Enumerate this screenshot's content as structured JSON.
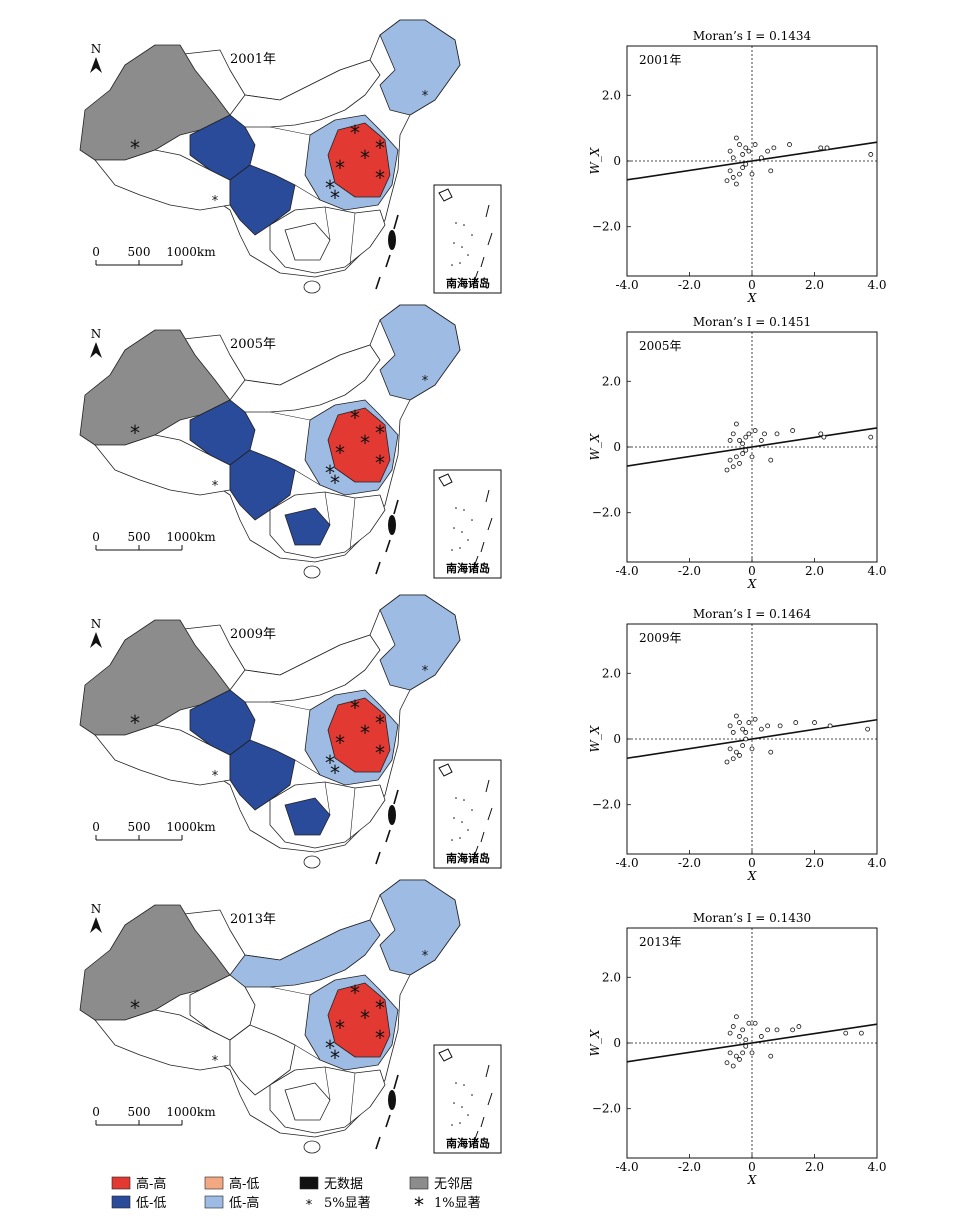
{
  "colors": {
    "high_high": "#e23a33",
    "high_low": "#f4a882",
    "no_data": "#111111",
    "no_neighbor": "#8c8c8c",
    "low_low": "#2a4a9a",
    "low_high": "#9dbbe3",
    "base": "#ffffff"
  },
  "map": {
    "north_label": "N",
    "scale_labels": [
      "0",
      "500",
      "1000km"
    ],
    "inset_label": "南海诸岛"
  },
  "legend": {
    "items": [
      {
        "key": "high_high",
        "label": "高-高"
      },
      {
        "key": "high_low",
        "label": "高-低"
      },
      {
        "key": "no_data",
        "label": "无数据"
      },
      {
        "key": "no_neighbor",
        "label": "无邻居"
      },
      {
        "key": "low_low",
        "label": "低-低"
      },
      {
        "key": "low_high",
        "label": "低-高"
      },
      {
        "key": "sig5",
        "label": "5%显著"
      },
      {
        "key": "sig1",
        "label": "1%显著"
      }
    ]
  },
  "chart_data": [
    {
      "type": "scatter",
      "title": "Moran’s I = 0.1434",
      "moran_i": 0.1434,
      "year_label": "2001年",
      "xlabel": "X",
      "ylabel": "W_X",
      "xlim": [
        -4.0,
        4.0
      ],
      "ylim": [
        -3.5,
        3.5
      ],
      "xticks": [
        -4.0,
        -2.0,
        0,
        2.0,
        4.0
      ],
      "yticks": [
        2.0,
        0,
        -2.0
      ],
      "slope": 0.1434,
      "points": [
        [
          -0.7,
          0.3
        ],
        [
          -0.6,
          0.1
        ],
        [
          -0.5,
          0.7
        ],
        [
          -0.4,
          0.5
        ],
        [
          -0.3,
          0.2
        ],
        [
          -0.1,
          0.3
        ],
        [
          0.1,
          0.5
        ],
        [
          0.5,
          0.3
        ],
        [
          0.7,
          0.4
        ],
        [
          1.2,
          0.5
        ],
        [
          2.2,
          0.4
        ],
        [
          2.4,
          0.4
        ],
        [
          3.8,
          0.2
        ],
        [
          -0.7,
          -0.3
        ],
        [
          -0.6,
          -0.5
        ],
        [
          -0.5,
          -0.7
        ],
        [
          -0.4,
          -0.4
        ],
        [
          -0.3,
          -0.2
        ],
        [
          -0.2,
          -0.1
        ],
        [
          0.0,
          -0.4
        ],
        [
          0.6,
          -0.3
        ],
        [
          -0.8,
          -0.6
        ],
        [
          0.3,
          0.1
        ],
        [
          -0.2,
          0.4
        ]
      ]
    },
    {
      "type": "scatter",
      "title": "Moran’s I = 0.1451",
      "moran_i": 0.1451,
      "year_label": "2005年",
      "xlabel": "X",
      "ylabel": "W_X",
      "xlim": [
        -4.0,
        4.0
      ],
      "ylim": [
        -3.5,
        3.5
      ],
      "xticks": [
        -4.0,
        -2.0,
        0,
        2.0,
        4.0
      ],
      "yticks": [
        2.0,
        0,
        -2.0
      ],
      "slope": 0.1451,
      "points": [
        [
          -0.7,
          0.2
        ],
        [
          -0.6,
          0.4
        ],
        [
          -0.5,
          0.7
        ],
        [
          -0.4,
          0.2
        ],
        [
          -0.3,
          0.1
        ],
        [
          -0.1,
          0.4
        ],
        [
          0.1,
          0.5
        ],
        [
          0.4,
          0.4
        ],
        [
          0.8,
          0.4
        ],
        [
          1.3,
          0.5
        ],
        [
          2.2,
          0.4
        ],
        [
          2.3,
          0.3
        ],
        [
          3.8,
          0.3
        ],
        [
          -0.7,
          -0.4
        ],
        [
          -0.6,
          -0.6
        ],
        [
          -0.5,
          -0.3
        ],
        [
          -0.4,
          -0.5
        ],
        [
          -0.3,
          -0.2
        ],
        [
          -0.2,
          -0.1
        ],
        [
          0.0,
          -0.3
        ],
        [
          0.6,
          -0.4
        ],
        [
          -0.8,
          -0.7
        ],
        [
          0.3,
          0.2
        ],
        [
          -0.2,
          0.3
        ]
      ]
    },
    {
      "type": "scatter",
      "title": "Moran’s I = 0.1464",
      "moran_i": 0.1464,
      "year_label": "2009年",
      "xlabel": "X",
      "ylabel": "W_X",
      "xlim": [
        -4.0,
        4.0
      ],
      "ylim": [
        -3.5,
        3.5
      ],
      "xticks": [
        -4.0,
        -2.0,
        0,
        2.0,
        4.0
      ],
      "yticks": [
        2.0,
        0,
        -2.0
      ],
      "slope": 0.1464,
      "points": [
        [
          -0.7,
          0.4
        ],
        [
          -0.6,
          0.2
        ],
        [
          -0.5,
          0.7
        ],
        [
          -0.4,
          0.5
        ],
        [
          -0.3,
          0.3
        ],
        [
          -0.1,
          0.5
        ],
        [
          0.1,
          0.6
        ],
        [
          0.5,
          0.4
        ],
        [
          0.9,
          0.4
        ],
        [
          1.4,
          0.5
        ],
        [
          2.0,
          0.5
        ],
        [
          2.5,
          0.4
        ],
        [
          3.7,
          0.3
        ],
        [
          -0.7,
          -0.3
        ],
        [
          -0.6,
          -0.6
        ],
        [
          -0.5,
          -0.4
        ],
        [
          -0.4,
          -0.5
        ],
        [
          -0.3,
          -0.2
        ],
        [
          -0.2,
          0.0
        ],
        [
          0.0,
          -0.3
        ],
        [
          0.6,
          -0.4
        ],
        [
          -0.8,
          -0.7
        ],
        [
          0.3,
          0.3
        ],
        [
          -0.2,
          0.2
        ]
      ]
    },
    {
      "type": "scatter",
      "title": "Moran’s I = 0.1430",
      "moran_i": 0.143,
      "year_label": "2013年",
      "xlabel": "X",
      "ylabel": "W_X",
      "xlim": [
        -4.0,
        4.0
      ],
      "ylim": [
        -3.5,
        3.5
      ],
      "xticks": [
        -4.0,
        -2.0,
        0,
        2.0,
        4.0
      ],
      "yticks": [
        2.0,
        0,
        -2.0
      ],
      "slope": 0.143,
      "points": [
        [
          -0.7,
          0.3
        ],
        [
          -0.6,
          0.5
        ],
        [
          -0.5,
          0.8
        ],
        [
          -0.4,
          0.2
        ],
        [
          -0.3,
          0.4
        ],
        [
          -0.1,
          0.6
        ],
        [
          0.1,
          0.6
        ],
        [
          0.5,
          0.4
        ],
        [
          0.8,
          0.4
        ],
        [
          1.3,
          0.4
        ],
        [
          1.5,
          0.5
        ],
        [
          3.0,
          0.3
        ],
        [
          3.5,
          0.3
        ],
        [
          -0.7,
          -0.3
        ],
        [
          -0.6,
          -0.7
        ],
        [
          -0.5,
          -0.4
        ],
        [
          -0.4,
          -0.5
        ],
        [
          -0.3,
          -0.3
        ],
        [
          -0.2,
          -0.1
        ],
        [
          0.0,
          -0.3
        ],
        [
          0.6,
          -0.4
        ],
        [
          -0.8,
          -0.6
        ],
        [
          0.3,
          0.2
        ],
        [
          -0.2,
          0.1
        ]
      ]
    }
  ]
}
